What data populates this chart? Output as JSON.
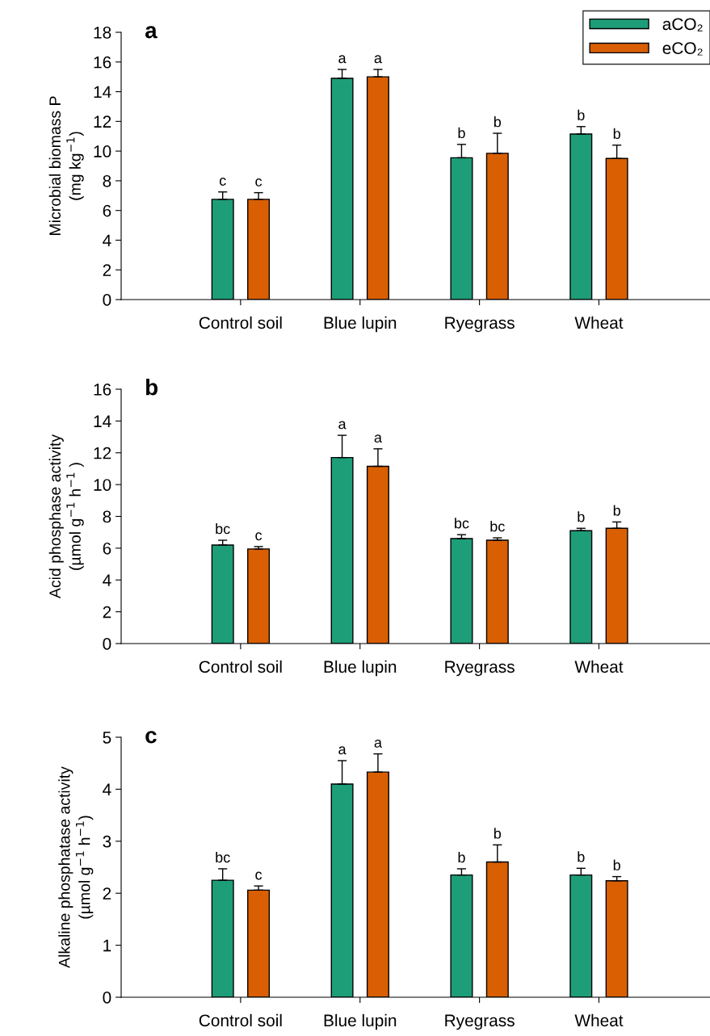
{
  "chart_data": [
    {
      "type": "bar",
      "title": "a",
      "ylabel": "Microbial biomass P\n(mg kg$^{−1}$)",
      "categories": [
        "Control soil",
        "Blue lupin",
        "Ryegrass",
        "Wheat"
      ],
      "ylim": [
        0,
        18
      ],
      "yticks": [
        0,
        2,
        4,
        6,
        8,
        10,
        12,
        14,
        16,
        18
      ],
      "legend": "top right",
      "grid": false,
      "series": [
        {
          "name": "aCO₂",
          "color": "#1e9e78",
          "values": [
            6.75,
            14.9,
            9.55,
            11.15
          ],
          "errors": [
            [
              6.75,
              7.25
            ],
            [
              14.9,
              15.5
            ],
            [
              9.55,
              10.45
            ],
            [
              11.15,
              11.65
            ]
          ],
          "value_labels": [
            "c",
            "a",
            "b",
            "b"
          ]
        },
        {
          "name": "eCO₂",
          "color": "#d95f02",
          "values": [
            6.75,
            15.0,
            9.85,
            9.5
          ],
          "errors": [
            [
              6.75,
              7.2
            ],
            [
              15.0,
              15.5
            ],
            [
              9.85,
              11.2
            ],
            [
              9.5,
              10.4
            ]
          ],
          "value_labels": [
            "c",
            "a",
            "b",
            "b"
          ]
        }
      ]
    },
    {
      "type": "bar",
      "title": "b",
      "ylabel": "Acid phosphase activity\n(µmol g$^{−1}$ h$^{−1}$ )",
      "categories": [
        "Control soil",
        "Blue lupin",
        "Ryegrass",
        "Wheat"
      ],
      "ylim": [
        0,
        16
      ],
      "yticks": [
        0,
        2,
        4,
        6,
        8,
        10,
        12,
        14,
        16
      ],
      "grid": false,
      "series": [
        {
          "color": "#1e9e78",
          "values": [
            6.2,
            11.7,
            6.6,
            7.1
          ],
          "errors": [
            [
              6.2,
              6.5
            ],
            [
              11.7,
              13.1
            ],
            [
              6.6,
              6.85
            ],
            [
              7.1,
              7.25
            ]
          ],
          "value_labels": [
            "bc",
            "a",
            "bc",
            "b"
          ]
        },
        {
          "color": "#d95f02",
          "values": [
            5.95,
            11.15,
            6.5,
            7.25
          ],
          "errors": [
            [
              5.95,
              6.1
            ],
            [
              11.15,
              12.25
            ],
            [
              6.5,
              6.65
            ],
            [
              7.25,
              7.65
            ]
          ],
          "value_labels": [
            "c",
            "a",
            "bc",
            "b"
          ]
        }
      ]
    },
    {
      "type": "bar",
      "title": "c",
      "ylabel": "Alkaline phosphatase activity\n(µmol g$^{−1}$ h$^{−1}$)",
      "categories": [
        "Control soil",
        "Blue lupin",
        "Ryegrass",
        "Wheat"
      ],
      "ylim": [
        0,
        5
      ],
      "yticks": [
        0,
        1,
        2,
        3,
        4,
        5
      ],
      "grid": false,
      "series": [
        {
          "color": "#1e9e78",
          "values": [
            2.25,
            4.1,
            2.35,
            2.35
          ],
          "errors": [
            [
              2.25,
              2.47
            ],
            [
              4.1,
              4.55
            ],
            [
              2.35,
              2.47
            ],
            [
              2.35,
              2.48
            ]
          ],
          "value_labels": [
            "bc",
            "a",
            "b",
            "b"
          ]
        },
        {
          "color": "#d95f02",
          "values": [
            2.06,
            4.33,
            2.6,
            2.24
          ],
          "errors": [
            [
              2.06,
              2.14
            ],
            [
              4.33,
              4.68
            ],
            [
              2.6,
              2.93
            ],
            [
              2.24,
              2.32
            ]
          ],
          "value_labels": [
            "c",
            "a",
            "b",
            "b"
          ]
        }
      ]
    }
  ]
}
